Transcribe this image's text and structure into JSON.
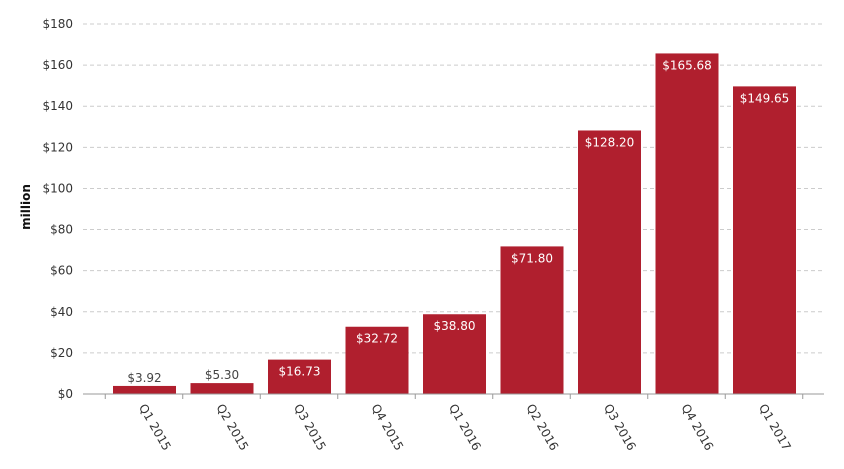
{
  "chart_data": {
    "type": "bar",
    "categories": [
      "Q1 2015",
      "Q2 2015",
      "Q3 2015",
      "Q4 2015",
      "Q1 2016",
      "Q2 2016",
      "Q3 2016",
      "Q4 2016",
      "Q1 2017"
    ],
    "values": [
      3.92,
      5.3,
      16.73,
      32.72,
      38.8,
      71.8,
      128.2,
      165.68,
      149.65
    ],
    "value_labels": [
      "$3.92",
      "$5.30",
      "$16.73",
      "$32.72",
      "$38.80",
      "$71.80",
      "$128.20",
      "$165.68",
      "$149.65"
    ],
    "ylabel": "million",
    "ylim": [
      0,
      180
    ],
    "yticks": [
      0,
      20,
      40,
      60,
      80,
      100,
      120,
      140,
      160,
      180
    ],
    "ytick_labels": [
      "$0",
      "$20",
      "$40",
      "$60",
      "$80",
      "$100",
      "$120",
      "$140",
      "$160",
      "$180"
    ],
    "grid": true,
    "legend": "none",
    "colors": {
      "bar": "#b01f2e",
      "grid": "#cccccc",
      "axis": "#999999",
      "label_inside": "#ffffff",
      "label_outside": "#444444"
    }
  }
}
